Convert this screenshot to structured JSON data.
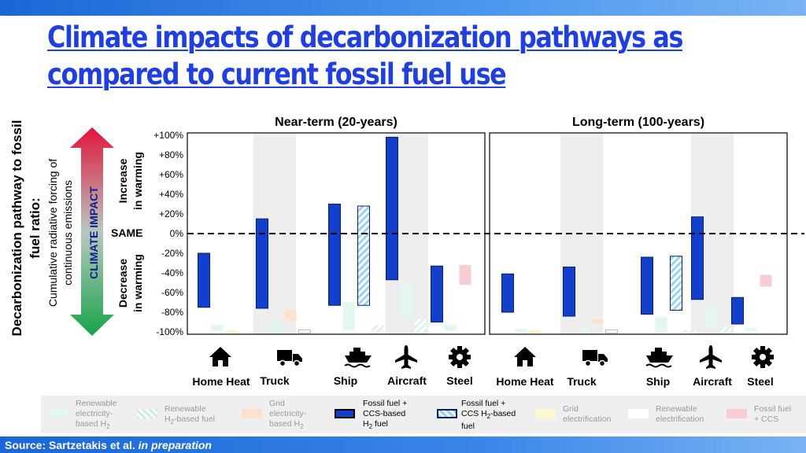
{
  "title_line1": "Climate impacts of decarbonization pathways as",
  "title_line2": "compared to current fossil fuel use",
  "source_label": "Source: Sartzetakis et al.",
  "source_status": "in preparation",
  "colors": {
    "renewable_h2": "#e3f7ee",
    "renewable_h2_fuel": "#e3f7ee",
    "grid_h2": "#fde1cc",
    "fossil_ccs_h2": "#123fcc",
    "fossil_ccs_h2_fuel": "#9ad2f2",
    "grid_electrification": "#fdf7d2",
    "renewable_electrification": "#ffffff",
    "fossil_ccs": "#f7cdd3",
    "accent": "#1f3fe0"
  },
  "left_axis": {
    "title_line1": "Decarbonization pathway to fossil",
    "title_line2": "fuel ratio:",
    "subtitle_line1": "Cumulative radiative forcing of",
    "subtitle_line2": "continuous emissions",
    "arrow_label": "CLIMATE IMPACT",
    "increase_line1": "Increase",
    "increase_line2": "in warming",
    "decrease_line1": "Decrease",
    "decrease_line2": "in warming",
    "same_label": "SAME"
  },
  "chart_data": {
    "type": "bar",
    "subtype": "floating-range",
    "ylim": [
      -100,
      100
    ],
    "y_ticks": [
      "+100%",
      "+80%",
      "+60%",
      "+40%",
      "+20%",
      "0%",
      "-20%",
      "-40%",
      "-60%",
      "-80%",
      "-100%"
    ],
    "reference_line": 0,
    "categories": [
      "Home Heat",
      "Truck",
      "Ship",
      "Aircraft",
      "Steel"
    ],
    "series": [
      {
        "name": "Renewable electricity-based H2",
        "key": "renewable_h2"
      },
      {
        "name": "Renewable H2-based fuel",
        "key": "renewable_h2_fuel"
      },
      {
        "name": "Grid electricity-based H2",
        "key": "grid_h2"
      },
      {
        "name": "Fossil fuel + CCS-based H2 fuel",
        "key": "fossil_ccs_h2"
      },
      {
        "name": "Fossil fuel + CCS H2-based fuel",
        "key": "fossil_ccs_h2_fuel"
      },
      {
        "name": "Grid electrification",
        "key": "grid_electrification"
      },
      {
        "name": "Renewable electrification",
        "key": "renewable_electrification"
      },
      {
        "name": "Fossil fuel + CCS",
        "key": "fossil_ccs"
      }
    ],
    "panels": [
      {
        "title": "Near-term (20-years)",
        "bars": [
          {
            "category": "Home Heat",
            "key": "fossil_ccs_h2",
            "low": -75,
            "high": -20
          },
          {
            "category": "Home Heat",
            "key": "renewable_h2",
            "low": -99,
            "high": -93
          },
          {
            "category": "Home Heat",
            "key": "grid_electrification",
            "low": -101,
            "high": -98
          },
          {
            "category": "Truck",
            "key": "fossil_ccs_h2",
            "low": -76,
            "high": 15
          },
          {
            "category": "Truck",
            "key": "renewable_h2",
            "low": -100,
            "high": -90
          },
          {
            "category": "Truck",
            "key": "grid_h2",
            "low": -88,
            "high": -78
          },
          {
            "category": "Truck",
            "key": "renewable_electrification",
            "low": -101,
            "high": -98
          },
          {
            "category": "Ship",
            "key": "fossil_ccs_h2",
            "low": -73,
            "high": 30
          },
          {
            "category": "Ship",
            "key": "fossil_ccs_h2_fuel",
            "low": -73,
            "high": 28
          },
          {
            "category": "Ship",
            "key": "renewable_h2",
            "low": -98,
            "high": -70
          },
          {
            "category": "Ship",
            "key": "renewable_h2_fuel",
            "low": -101,
            "high": -93
          },
          {
            "category": "Aircraft",
            "key": "fossil_ccs_h2",
            "low": -47,
            "high": 98
          },
          {
            "category": "Aircraft",
            "key": "renewable_h2",
            "low": -85,
            "high": -51
          },
          {
            "category": "Aircraft",
            "key": "renewable_h2_fuel",
            "low": -101,
            "high": -87
          },
          {
            "category": "Steel",
            "key": "fossil_ccs_h2",
            "low": -90,
            "high": -33
          },
          {
            "category": "Steel",
            "key": "fossil_ccs",
            "low": -52,
            "high": -32
          },
          {
            "category": "Steel",
            "key": "renewable_h2",
            "low": -99,
            "high": -93
          }
        ]
      },
      {
        "title": "Long-term (100-years)",
        "bars": [
          {
            "category": "Home Heat",
            "key": "fossil_ccs_h2",
            "low": -80,
            "high": -41
          },
          {
            "category": "Home Heat",
            "key": "renewable_h2",
            "low": -100,
            "high": -97
          },
          {
            "category": "Home Heat",
            "key": "grid_electrification",
            "low": -101,
            "high": -98
          },
          {
            "category": "Truck",
            "key": "fossil_ccs_h2",
            "low": -84,
            "high": -34
          },
          {
            "category": "Truck",
            "key": "renewable_h2",
            "low": -101,
            "high": -95
          },
          {
            "category": "Truck",
            "key": "grid_h2",
            "low": -92,
            "high": -87
          },
          {
            "category": "Truck",
            "key": "renewable_electrification",
            "low": -101,
            "high": -98
          },
          {
            "category": "Ship",
            "key": "fossil_ccs_h2",
            "low": -82,
            "high": -24
          },
          {
            "category": "Ship",
            "key": "fossil_ccs_h2_fuel",
            "low": -78,
            "high": -23
          },
          {
            "category": "Ship",
            "key": "renewable_h2",
            "low": -100,
            "high": -85
          },
          {
            "category": "Ship",
            "key": "renewable_h2_fuel",
            "low": -101,
            "high": -98
          },
          {
            "category": "Aircraft",
            "key": "fossil_ccs_h2",
            "low": -67,
            "high": 17
          },
          {
            "category": "Aircraft",
            "key": "renewable_h2",
            "low": -95,
            "high": -74
          },
          {
            "category": "Aircraft",
            "key": "renewable_h2_fuel",
            "low": -101,
            "high": -95
          },
          {
            "category": "Steel",
            "key": "fossil_ccs_h2",
            "low": -92,
            "high": -65
          },
          {
            "category": "Steel",
            "key": "fossil_ccs",
            "low": -54,
            "high": -42
          },
          {
            "category": "Steel",
            "key": "renewable_h2",
            "low": -99,
            "high": -96
          }
        ]
      }
    ]
  },
  "legend": [
    {
      "key": "renewable_h2",
      "line1": "Renewable",
      "line2": "electricity-",
      "line3": "based H",
      "sub": "2",
      "dark": false
    },
    {
      "key": "renewable_h2_fuel",
      "line1": "Renewable",
      "line2": "H",
      "sub": "2",
      "line2b": "-based fuel",
      "dark": false
    },
    {
      "key": "grid_h2",
      "line1": "Grid",
      "line2": "electricity-",
      "line3": "based H",
      "sub": "2",
      "dark": false
    },
    {
      "key": "fossil_ccs_h2",
      "line1": "Fossil fuel +",
      "line2": "CCS-based",
      "line3": "H",
      "sub": "2",
      "line3b": " fuel",
      "dark": true
    },
    {
      "key": "fossil_ccs_h2_fuel",
      "line1": "Fossil fuel +",
      "line2": "CCS H",
      "sub": "2",
      "line2b": "-based",
      "line3": "fuel",
      "dark": true
    },
    {
      "key": "grid_electrification",
      "line1": "Grid",
      "line2": "electrification",
      "dark": false
    },
    {
      "key": "renewable_electrification",
      "line1": "Renewable",
      "line2": "electrification",
      "dark": false
    },
    {
      "key": "fossil_ccs",
      "line1": "Fossil fuel",
      "line2": "+ CCS",
      "dark": false
    }
  ],
  "icons": [
    "home-icon",
    "truck-icon",
    "ship-icon",
    "airplane-icon",
    "gear-icon"
  ]
}
